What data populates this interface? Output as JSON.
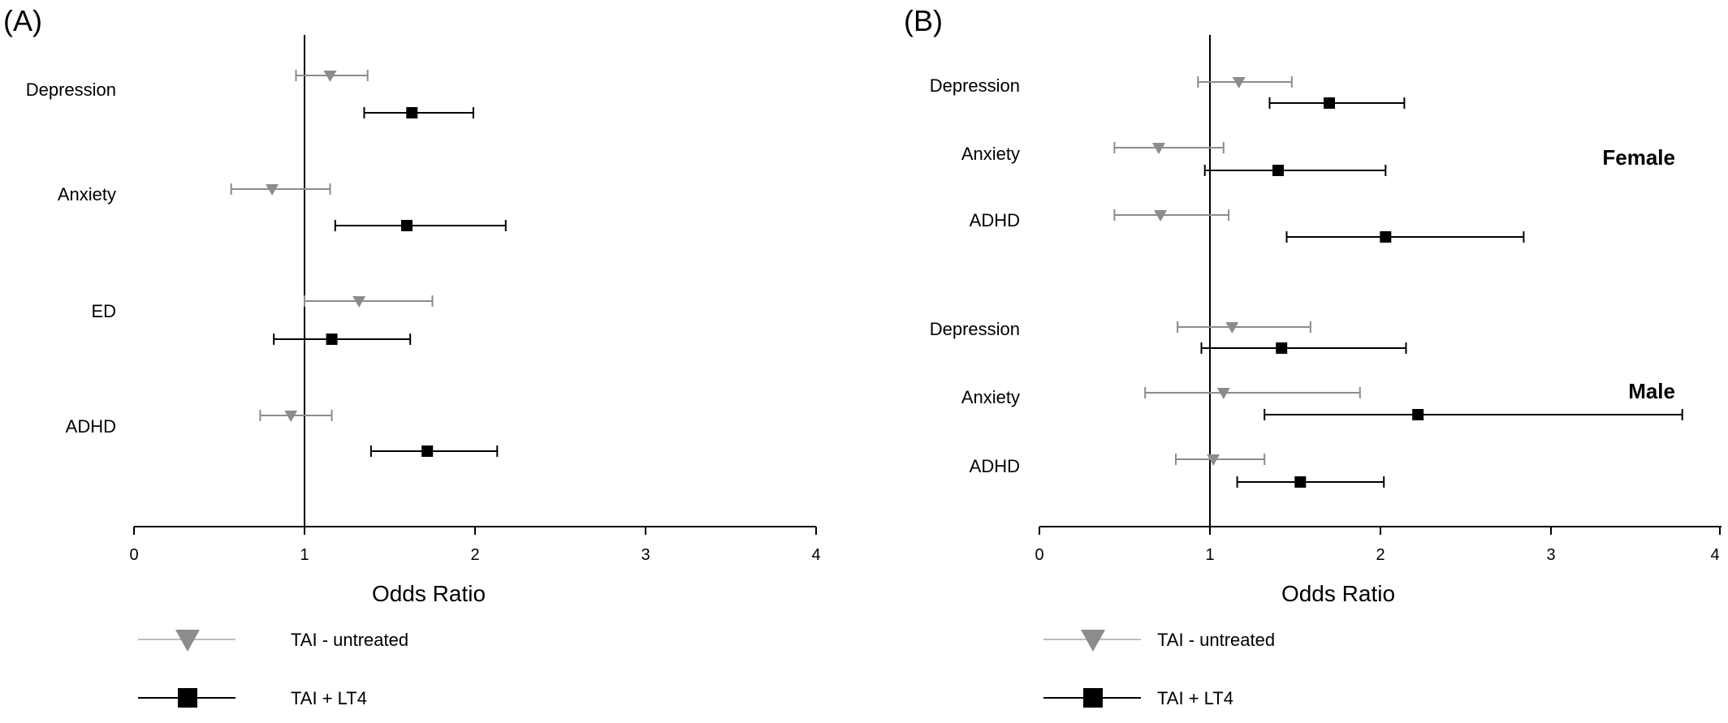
{
  "chart_data": [
    {
      "type": "forest",
      "panel_label": "(A)",
      "xlabel": "Odds Ratio",
      "xlim": [
        0,
        4
      ],
      "x_ticks": [
        "0",
        "1",
        "2",
        "3",
        "4"
      ],
      "reference_line": 1,
      "rows": [
        {
          "label": "Depression",
          "points": [
            {
              "series": "TAI - untreated",
              "or": 1.15,
              "ci": [
                0.95,
                1.37
              ]
            },
            {
              "series": "TAI + LT4",
              "or": 1.63,
              "ci": [
                1.35,
                1.99
              ]
            }
          ]
        },
        {
          "label": "Anxiety",
          "points": [
            {
              "series": "TAI - untreated",
              "or": 0.81,
              "ci": [
                0.57,
                1.15
              ]
            },
            {
              "series": "TAI + LT4",
              "or": 1.6,
              "ci": [
                1.18,
                2.18
              ]
            }
          ]
        },
        {
          "label": "ED",
          "points": [
            {
              "series": "TAI - untreated",
              "or": 1.32,
              "ci": [
                1.0,
                1.75
              ]
            },
            {
              "series": "TAI + LT4",
              "or": 1.16,
              "ci": [
                0.82,
                1.62
              ]
            }
          ]
        },
        {
          "label": "ADHD",
          "points": [
            {
              "series": "TAI - untreated",
              "or": 0.92,
              "ci": [
                0.74,
                1.16
              ]
            },
            {
              "series": "TAI + LT4",
              "or": 1.72,
              "ci": [
                1.39,
                2.13
              ]
            }
          ]
        }
      ],
      "legend": [
        {
          "label": "TAI - untreated",
          "marker": "triangle-down",
          "color": "#8c8c8c"
        },
        {
          "label": "TAI + LT4",
          "marker": "square",
          "color": "#000000"
        }
      ]
    },
    {
      "type": "forest",
      "panel_label": "(B)",
      "xlabel": "Odds Ratio",
      "xlim": [
        0,
        4
      ],
      "x_ticks": [
        "0",
        "1",
        "2",
        "3",
        "4"
      ],
      "reference_line": 1,
      "groups": [
        {
          "title": "Female",
          "rows": [
            {
              "label": "Depression",
              "points": [
                {
                  "series": "TAI - untreated",
                  "or": 1.17,
                  "ci": [
                    0.93,
                    1.48
                  ]
                },
                {
                  "series": "TAI + LT4",
                  "or": 1.7,
                  "ci": [
                    1.35,
                    2.14
                  ]
                }
              ]
            },
            {
              "label": "Anxiety",
              "points": [
                {
                  "series": "TAI - untreated",
                  "or": 0.7,
                  "ci": [
                    0.44,
                    1.08
                  ]
                },
                {
                  "series": "TAI + LT4",
                  "or": 1.4,
                  "ci": [
                    0.97,
                    2.03
                  ]
                }
              ]
            },
            {
              "label": "ADHD",
              "points": [
                {
                  "series": "TAI - untreated",
                  "or": 0.71,
                  "ci": [
                    0.44,
                    1.11
                  ]
                },
                {
                  "series": "TAI + LT4",
                  "or": 2.03,
                  "ci": [
                    1.45,
                    2.84
                  ]
                }
              ]
            }
          ]
        },
        {
          "title": "Male",
          "rows": [
            {
              "label": "Depression",
              "points": [
                {
                  "series": "TAI - untreated",
                  "or": 1.13,
                  "ci": [
                    0.81,
                    1.59
                  ]
                },
                {
                  "series": "TAI + LT4",
                  "or": 1.42,
                  "ci": [
                    0.95,
                    2.15
                  ]
                }
              ]
            },
            {
              "label": "Anxiety",
              "points": [
                {
                  "series": "TAI - untreated",
                  "or": 1.08,
                  "ci": [
                    0.62,
                    1.88
                  ]
                },
                {
                  "series": "TAI + LT4",
                  "or": 2.22,
                  "ci": [
                    1.32,
                    3.77
                  ]
                }
              ]
            },
            {
              "label": "ADHD",
              "points": [
                {
                  "series": "TAI - untreated",
                  "or": 1.02,
                  "ci": [
                    0.8,
                    1.32
                  ]
                },
                {
                  "series": "TAI + LT4",
                  "or": 1.53,
                  "ci": [
                    1.16,
                    2.02
                  ]
                }
              ]
            }
          ]
        }
      ],
      "legend": [
        {
          "label": "TAI - untreated",
          "marker": "triangle-down",
          "color": "#8c8c8c"
        },
        {
          "label": "TAI + LT4",
          "marker": "square",
          "color": "#000000"
        }
      ]
    }
  ]
}
